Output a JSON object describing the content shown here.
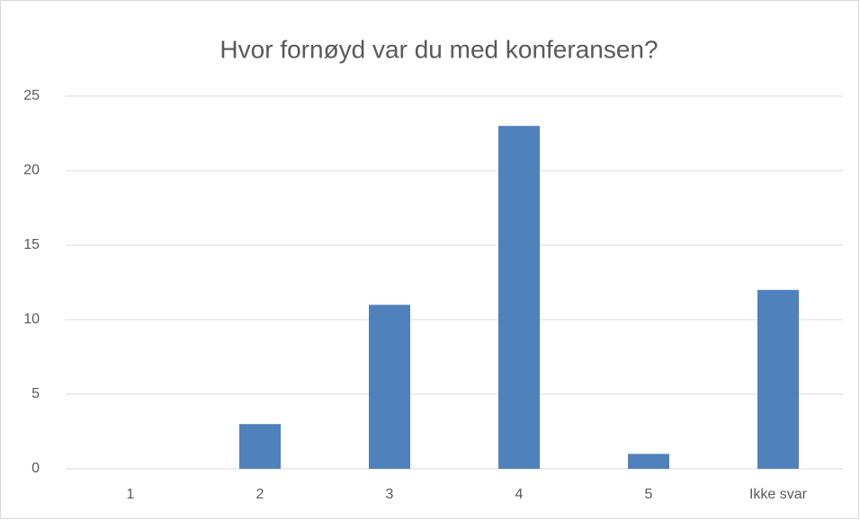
{
  "chart_data": {
    "type": "bar",
    "title": "Hvor fornøyd var du med konferansen?",
    "categories": [
      "1",
      "2",
      "3",
      "4",
      "5",
      "Ikke svar"
    ],
    "values": [
      0,
      3,
      11,
      23,
      1,
      12
    ],
    "color": "#4f81bd",
    "ylim": [
      0,
      25
    ],
    "yticks": [
      0,
      5,
      10,
      15,
      20,
      25
    ],
    "grid": true
  }
}
